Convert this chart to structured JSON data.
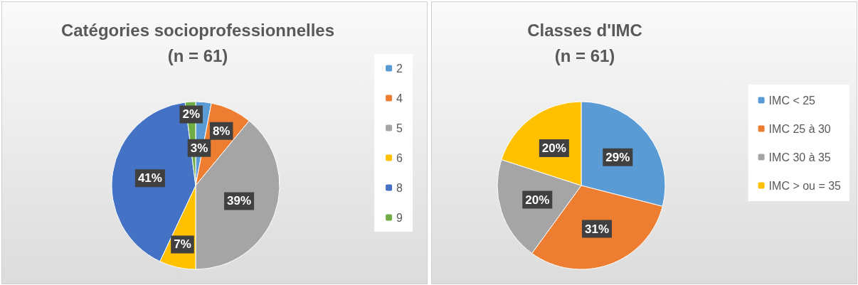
{
  "chart_data": [
    {
      "type": "pie",
      "title": "Catégories socioprofessionnelles",
      "subtitle": "(n = 61)",
      "categories": [
        "2",
        "4",
        "5",
        "6",
        "8",
        "9"
      ],
      "values": [
        3,
        8,
        39,
        7,
        41,
        2
      ],
      "colors": [
        "#5b9bd5",
        "#ed7d31",
        "#a5a5a5",
        "#ffc000",
        "#4472c4",
        "#70ad47"
      ],
      "value_labels": [
        "3%",
        "8%",
        "39%",
        "7%",
        "41%",
        "2%"
      ],
      "legend": "right"
    },
    {
      "type": "pie",
      "title": "Classes d'IMC",
      "subtitle": "(n = 61)",
      "categories": [
        "IMC < 25",
        "IMC 25 à 30",
        "IMC 30 à 35",
        "IMC > ou = 35"
      ],
      "values": [
        29,
        31,
        20,
        20
      ],
      "colors": [
        "#5b9bd5",
        "#ed7d31",
        "#a5a5a5",
        "#ffc000"
      ],
      "value_labels": [
        "29%",
        "31%",
        "20%",
        "20%"
      ],
      "legend": "right"
    }
  ]
}
